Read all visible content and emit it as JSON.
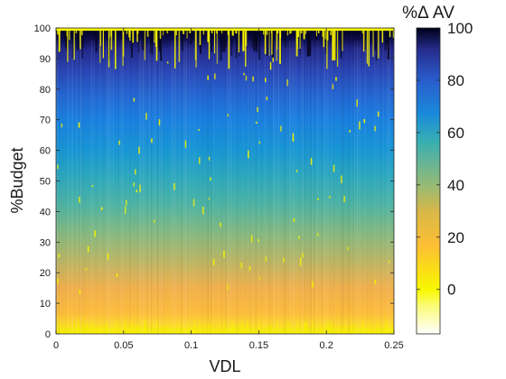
{
  "chart_data": {
    "type": "heatmap",
    "xlabel": "VDL",
    "ylabel": "%Budget",
    "xlim": [
      0,
      0.25
    ],
    "ylim": [
      0,
      100
    ],
    "x_ticks": [
      "0",
      "0.05",
      "0.1",
      "0.15",
      "0.2",
      "0.25"
    ],
    "y_ticks": [
      "0",
      "10",
      "20",
      "30",
      "40",
      "50",
      "60",
      "70",
      "80",
      "90",
      "100"
    ],
    "colorbar": {
      "title": "%Δ AV",
      "range": [
        -17,
        100
      ],
      "ticks": [
        "0",
        "20",
        "40",
        "60",
        "80",
        "100"
      ],
      "colormap": [
        "#ffffff",
        "#f8f800",
        "#fcbe34",
        "#94ba78",
        "#36aeb2",
        "#198ada",
        "#2a5ccc",
        "#262c8c",
        "#000018"
      ]
    },
    "grid": false,
    "legend": "none",
    "dominant_trend": "%Δ AV rises with %Budget: about 0 near 0% budget, about 50 near 45% budget, about 90 near 90% budget, for all VDL values"
  }
}
